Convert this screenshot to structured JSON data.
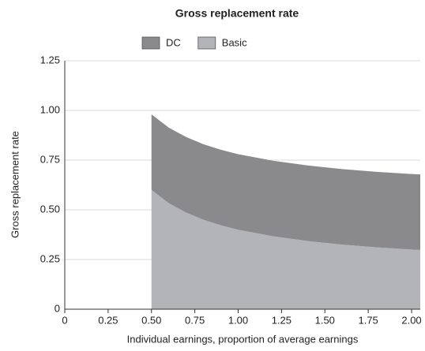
{
  "chart_data": {
    "type": "stacked-area",
    "title": "Gross replacement rate",
    "x_label": "Individual earnings, proportion of average earnings",
    "y_label": "Gross replacement rate",
    "x": [
      0.5,
      0.6,
      0.7,
      0.8,
      0.9,
      1.0,
      1.2,
      1.4,
      1.6,
      1.8,
      2.0,
      2.05
    ],
    "series": [
      {
        "name": "DC",
        "color": "#8a8a8d",
        "values": [
          0.38,
          0.38,
          0.38,
          0.38,
          0.38,
          0.38,
          0.38,
          0.38,
          0.38,
          0.38,
          0.38,
          0.38
        ]
      },
      {
        "name": "Basic",
        "color": "#b3b4b7",
        "values": [
          0.6,
          0.533,
          0.486,
          0.45,
          0.422,
          0.4,
          0.367,
          0.343,
          0.325,
          0.311,
          0.3,
          0.298
        ]
      }
    ],
    "xlim": [
      0,
      2.05
    ],
    "xticks": [
      0,
      0.25,
      {
        "value": 0.5,
        "label": "0.50"
      },
      0.75,
      {
        "value": 1,
        "label": "1.00"
      },
      1.25,
      {
        "value": 1.5,
        "label": "1.50"
      },
      1.75,
      {
        "value": 2,
        "label": "2.00"
      }
    ],
    "ylim": [
      0,
      1.25
    ],
    "yticks": [
      0,
      0.25,
      {
        "value": 0.5,
        "label": "0.50"
      },
      0.75,
      {
        "value": 1,
        "label": "1.00"
      },
      1.25
    ],
    "grid": true,
    "legend": "top"
  }
}
